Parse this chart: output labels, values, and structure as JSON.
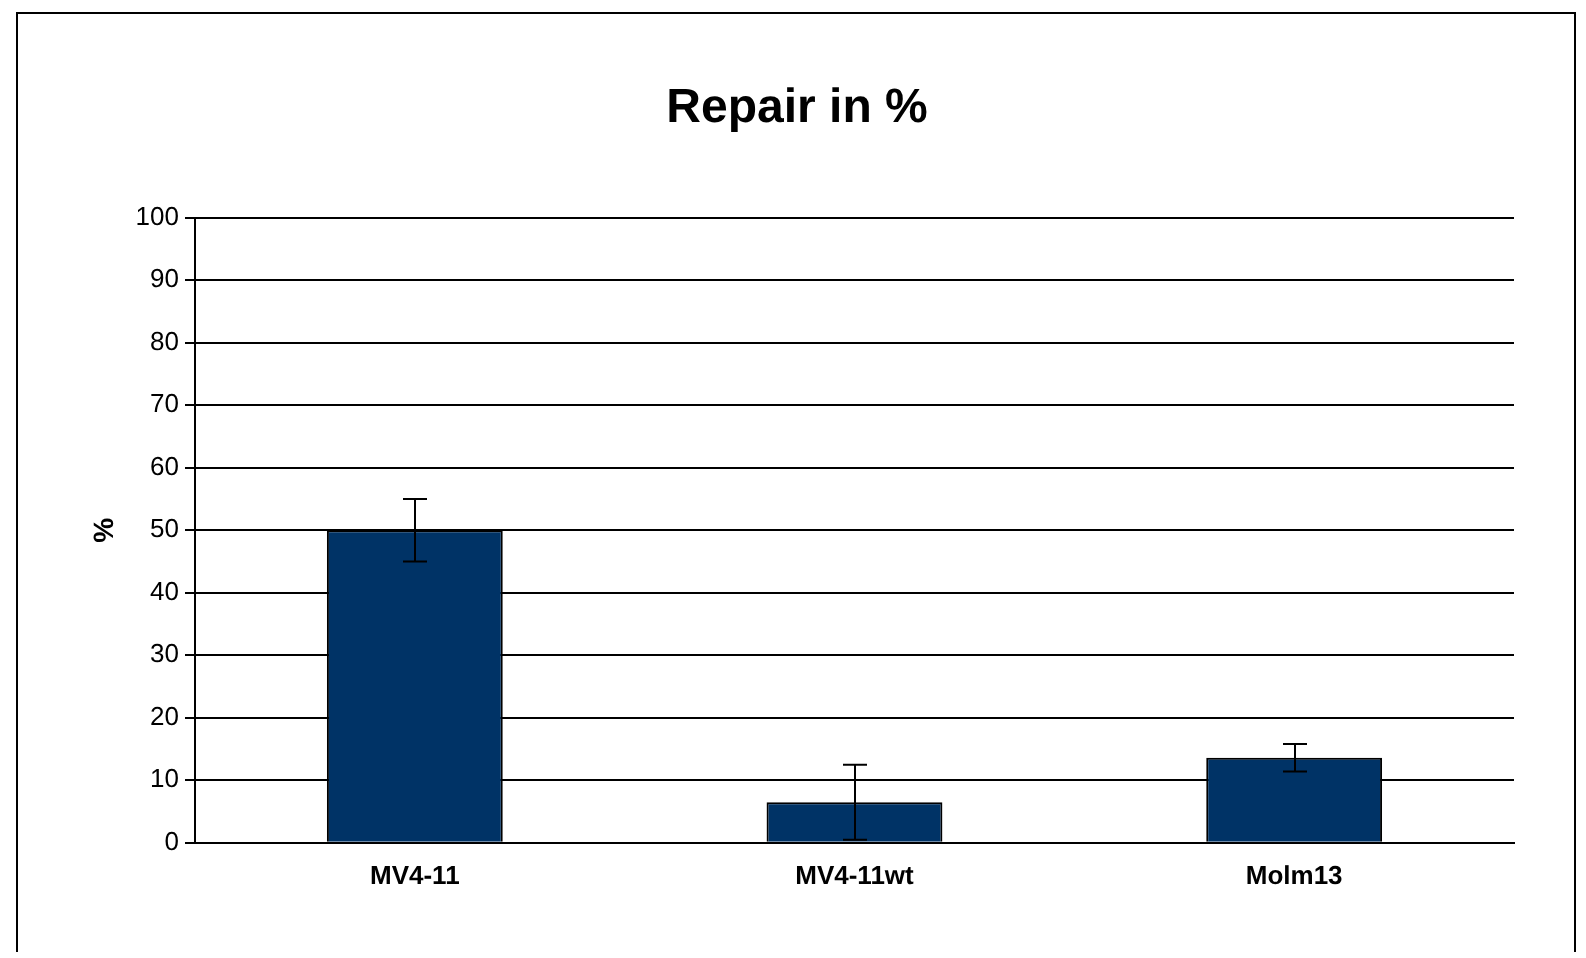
{
  "chart_data": {
    "type": "bar",
    "title": "Repair in %",
    "ylabel": "%",
    "categories": [
      "MV4-11",
      "MV4-11wt",
      "Molm13"
    ],
    "values": [
      50,
      6.5,
      13.6
    ],
    "errors": [
      5,
      6,
      2.2
    ],
    "color": "#003366",
    "ylim": [
      0,
      100
    ],
    "yticks": [
      0,
      10,
      20,
      30,
      40,
      50,
      60,
      70,
      80,
      90,
      100
    ],
    "grid": "y",
    "legend": false
  }
}
